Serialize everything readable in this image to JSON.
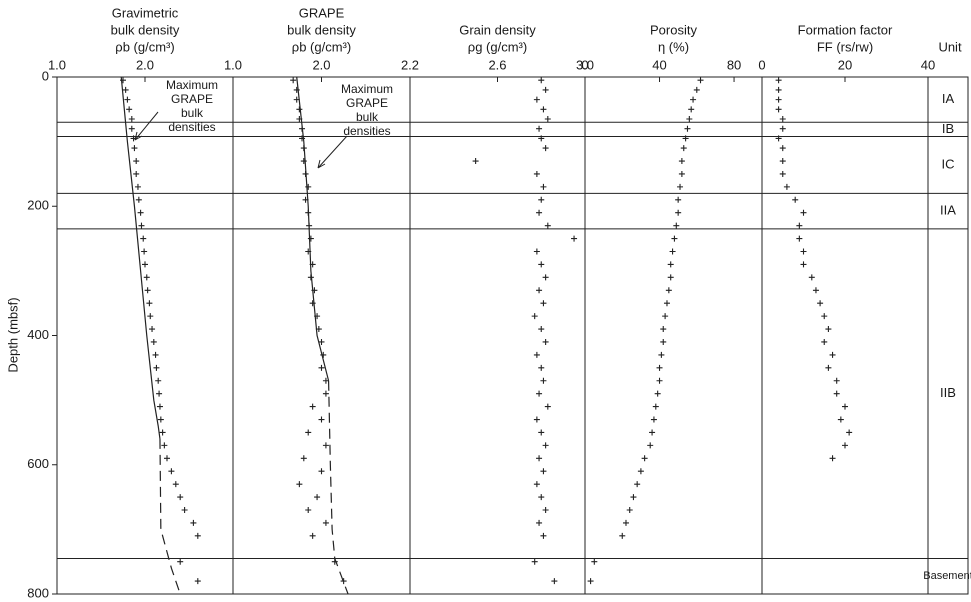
{
  "chart_data": [
    {
      "type": "scatter",
      "title": [
        "Gravimetric",
        "bulk density",
        "ρb (g/cm³)"
      ],
      "ylabel": "Depth (mbsf)",
      "ylim": [
        0,
        800
      ],
      "yticks": [
        0,
        200,
        400,
        600,
        800
      ],
      "xlim": [
        1,
        3
      ],
      "xticks": [
        {
          "value": 1,
          "label": "1.0"
        },
        {
          "value": 2,
          "label": "2.0"
        }
      ],
      "annotation": [
        "Maximum",
        "GRAPE",
        "bulk",
        "densities"
      ],
      "x": [
        1.75,
        1.78,
        1.8,
        1.82,
        1.85,
        1.85,
        1.87,
        1.88,
        1.9,
        1.9,
        1.92,
        1.93,
        1.95,
        1.96,
        1.98,
        1.99,
        2.0,
        2.02,
        2.03,
        2.05,
        2.06,
        2.08,
        2.1,
        2.12,
        2.13,
        2.15,
        2.16,
        2.17,
        2.18,
        2.2,
        2.22,
        2.25,
        2.3,
        2.35,
        2.4,
        2.45,
        2.55,
        2.6,
        2.4,
        2.6
      ],
      "y": [
        5,
        20,
        35,
        50,
        65,
        80,
        95,
        110,
        130,
        150,
        170,
        190,
        210,
        230,
        250,
        270,
        290,
        310,
        330,
        350,
        370,
        390,
        410,
        430,
        450,
        470,
        490,
        510,
        530,
        550,
        570,
        590,
        610,
        630,
        650,
        670,
        690,
        710,
        750,
        780
      ],
      "curves": [
        {
          "style": "solid",
          "x": [
            1.73,
            1.8,
            1.88,
            1.95,
            2.02,
            2.1,
            2.15,
            2.17
          ],
          "y": [
            0,
            100,
            200,
            300,
            400,
            500,
            540,
            560
          ]
        },
        {
          "style": "dashed",
          "x": [
            2.17,
            2.18,
            2.3,
            2.4
          ],
          "y": [
            560,
            700,
            760,
            800
          ]
        }
      ]
    },
    {
      "type": "scatter",
      "title": [
        "GRAPE",
        "bulk density",
        "ρb  (g/cm³)"
      ],
      "xlim": [
        1,
        3
      ],
      "xticks": [
        {
          "value": 1,
          "label": "1.0"
        },
        {
          "value": 2,
          "label": "2.0"
        }
      ],
      "annotation": [
        "Maximum",
        "GRAPE",
        "bulk",
        "densities"
      ],
      "x": [
        1.68,
        1.72,
        1.72,
        1.75,
        1.75,
        1.78,
        1.78,
        1.8,
        1.8,
        1.82,
        1.85,
        1.82,
        1.85,
        1.86,
        1.88,
        1.85,
        1.9,
        1.88,
        1.92,
        1.9,
        1.95,
        1.97,
        2.0,
        2.02,
        2.0,
        2.05,
        2.05,
        1.9,
        2.0,
        1.85,
        2.05,
        1.8,
        2.0,
        1.75,
        1.95,
        1.85,
        2.05,
        1.9,
        2.15,
        2.25
      ],
      "y": [
        5,
        20,
        35,
        50,
        65,
        80,
        95,
        110,
        130,
        150,
        170,
        190,
        210,
        230,
        250,
        270,
        290,
        310,
        330,
        350,
        370,
        390,
        410,
        430,
        450,
        470,
        490,
        510,
        530,
        550,
        570,
        590,
        610,
        630,
        650,
        670,
        690,
        710,
        750,
        780
      ],
      "curves": [
        {
          "style": "solid",
          "x": [
            1.72,
            1.8,
            1.85,
            1.88,
            1.95,
            2.08
          ],
          "y": [
            0,
            100,
            200,
            300,
            400,
            470
          ]
        },
        {
          "style": "dashed",
          "x": [
            2.08,
            2.1,
            2.12,
            2.15,
            2.3
          ],
          "y": [
            470,
            600,
            700,
            745,
            800
          ]
        }
      ]
    },
    {
      "type": "scatter",
      "title": [
        "Grain density",
        "ρg  (g/cm³)"
      ],
      "xlim": [
        2.2,
        3
      ],
      "xticks": [
        2.2,
        2.6,
        {
          "value": 3,
          "label": "3.0"
        }
      ],
      "x": [
        2.8,
        2.82,
        2.78,
        2.81,
        2.83,
        2.79,
        2.8,
        2.82,
        2.5,
        2.78,
        2.81,
        2.8,
        2.79,
        2.83,
        2.95,
        2.78,
        2.8,
        2.82,
        2.79,
        2.81,
        2.77,
        2.8,
        2.82,
        2.78,
        2.8,
        2.81,
        2.79,
        2.83,
        2.78,
        2.8,
        2.82,
        2.79,
        2.81,
        2.78,
        2.8,
        2.82,
        2.79,
        2.81,
        2.77,
        2.86
      ],
      "y": [
        5,
        20,
        35,
        50,
        65,
        80,
        95,
        110,
        130,
        150,
        170,
        190,
        210,
        230,
        250,
        270,
        290,
        310,
        330,
        350,
        370,
        390,
        410,
        430,
        450,
        470,
        490,
        510,
        530,
        550,
        570,
        590,
        610,
        630,
        650,
        670,
        690,
        710,
        750,
        780
      ]
    },
    {
      "type": "scatter",
      "title": [
        "Porosity",
        "η (%)"
      ],
      "xlim": [
        0,
        95
      ],
      "xticks": [
        0,
        40,
        80
      ],
      "x": [
        62,
        60,
        58,
        57,
        56,
        55,
        54,
        53,
        52,
        52,
        51,
        50,
        50,
        49,
        48,
        47,
        46,
        46,
        45,
        44,
        43,
        42,
        42,
        41,
        40,
        40,
        39,
        38,
        37,
        36,
        35,
        32,
        30,
        28,
        26,
        24,
        22,
        20,
        5,
        3
      ],
      "y": [
        5,
        20,
        35,
        50,
        65,
        80,
        95,
        110,
        130,
        150,
        170,
        190,
        210,
        230,
        250,
        270,
        290,
        310,
        330,
        350,
        370,
        390,
        410,
        430,
        450,
        470,
        490,
        510,
        530,
        550,
        570,
        590,
        610,
        630,
        650,
        670,
        690,
        710,
        750,
        780
      ]
    },
    {
      "type": "scatter",
      "title": [
        "Formation factor",
        "FF (rs/rw)"
      ],
      "xlim": [
        0,
        40
      ],
      "xticks": [
        0,
        20,
        40
      ],
      "x": [
        4,
        4,
        4,
        4,
        5,
        5,
        4,
        5,
        5,
        5,
        6,
        8,
        10,
        9,
        9,
        10,
        10,
        12,
        13,
        14,
        15,
        16,
        15,
        17,
        16,
        18,
        18,
        20,
        19,
        21,
        20,
        17
      ],
      "y": [
        5,
        20,
        35,
        50,
        65,
        80,
        95,
        110,
        130,
        150,
        170,
        190,
        210,
        230,
        250,
        270,
        290,
        310,
        330,
        350,
        370,
        390,
        410,
        430,
        450,
        470,
        490,
        510,
        530,
        550,
        570,
        590
      ]
    }
  ],
  "units": {
    "title": "Unit",
    "boundaries": [
      70,
      92,
      180,
      235,
      745
    ],
    "labels": [
      "IA",
      "IB",
      "IC",
      "IIA",
      "IIB",
      "Basement"
    ]
  }
}
